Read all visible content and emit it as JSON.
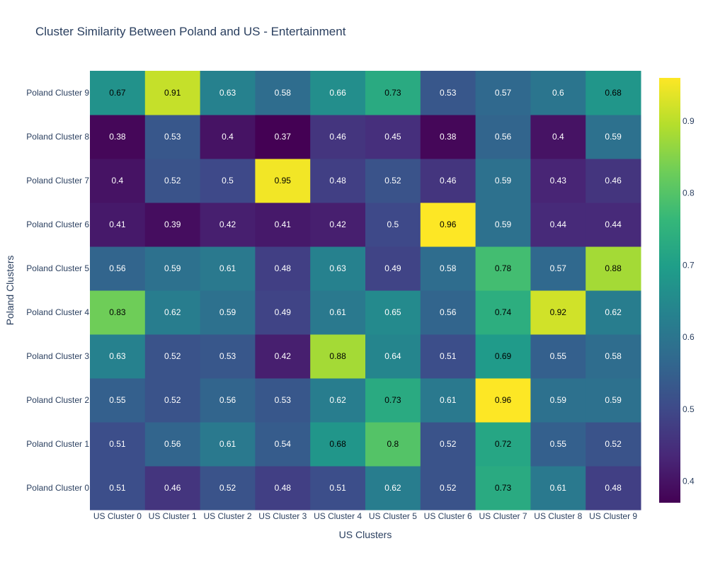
{
  "chart_data": {
    "type": "heatmap",
    "title": "Cluster Similarity Between Poland and US - Entertainment",
    "xlabel": "US Clusters",
    "ylabel": "Poland Clusters",
    "x_categories": [
      "US Cluster 0",
      "US Cluster 1",
      "US Cluster 2",
      "US Cluster 3",
      "US Cluster 4",
      "US Cluster 5",
      "US Cluster 6",
      "US Cluster 7",
      "US Cluster 8",
      "US Cluster 9"
    ],
    "y_categories": [
      "Poland Cluster 0",
      "Poland Cluster 1",
      "Poland Cluster 2",
      "Poland Cluster 3",
      "Poland Cluster 4",
      "Poland Cluster 5",
      "Poland Cluster 6",
      "Poland Cluster 7",
      "Poland Cluster 8",
      "Poland Cluster 9"
    ],
    "z": [
      [
        0.51,
        0.46,
        0.52,
        0.48,
        0.51,
        0.62,
        0.52,
        0.73,
        0.61,
        0.48
      ],
      [
        0.51,
        0.56,
        0.61,
        0.54,
        0.68,
        0.8,
        0.52,
        0.72,
        0.55,
        0.52
      ],
      [
        0.55,
        0.52,
        0.56,
        0.53,
        0.62,
        0.73,
        0.61,
        0.96,
        0.59,
        0.59
      ],
      [
        0.63,
        0.52,
        0.53,
        0.42,
        0.88,
        0.64,
        0.51,
        0.69,
        0.55,
        0.58
      ],
      [
        0.83,
        0.62,
        0.59,
        0.49,
        0.61,
        0.65,
        0.56,
        0.74,
        0.92,
        0.62
      ],
      [
        0.56,
        0.59,
        0.61,
        0.48,
        0.63,
        0.49,
        0.58,
        0.78,
        0.57,
        0.88
      ],
      [
        0.41,
        0.39,
        0.42,
        0.41,
        0.42,
        0.5,
        0.96,
        0.59,
        0.44,
        0.44
      ],
      [
        0.4,
        0.52,
        0.5,
        0.95,
        0.48,
        0.52,
        0.46,
        0.59,
        0.43,
        0.46
      ],
      [
        0.38,
        0.53,
        0.4,
        0.37,
        0.46,
        0.45,
        0.38,
        0.56,
        0.4,
        0.59
      ],
      [
        0.67,
        0.91,
        0.63,
        0.58,
        0.66,
        0.73,
        0.53,
        0.57,
        0.6,
        0.68
      ]
    ],
    "zmin": 0.37,
    "zmax": 0.96,
    "colorscale": "Viridis",
    "colorbar_ticks": [
      0.4,
      0.5,
      0.6,
      0.7,
      0.8,
      0.9
    ],
    "colorbar_tick_labels": [
      "0.4",
      "0.5",
      "0.6",
      "0.7",
      "0.8",
      "0.9"
    ],
    "cell_labels": true,
    "grid": false,
    "colorbar_placement": "right"
  }
}
